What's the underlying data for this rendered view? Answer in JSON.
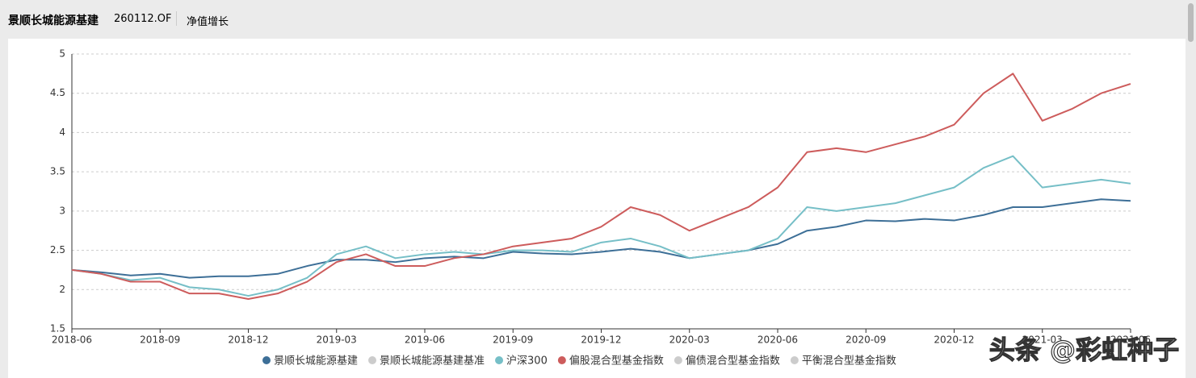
{
  "header": {
    "fund_name": "景顺长城能源基建",
    "fund_code": "260112.OF",
    "tab": "净值增长"
  },
  "watermark": "头条 @彩虹种子",
  "chart_data": {
    "type": "line",
    "categories": [
      "2018-06",
      null,
      null,
      "2018-09",
      null,
      null,
      "2018-12",
      null,
      null,
      "2019-03",
      null,
      null,
      "2019-06",
      null,
      null,
      "2019-09",
      null,
      null,
      "2019-12",
      null,
      null,
      "2020-03",
      null,
      null,
      "2020-06",
      null,
      null,
      "2020-09",
      null,
      null,
      "2020-12",
      null,
      null,
      "2021-03",
      null,
      null,
      "2021-06"
    ],
    "ylim": [
      1.5,
      5
    ],
    "yticks": [
      1.5,
      2,
      2.5,
      3,
      3.5,
      4,
      4.5,
      5
    ],
    "grid": true,
    "series": [
      {
        "name": "景顺长城能源基建",
        "color": "#3d6f97",
        "values": [
          2.25,
          2.22,
          2.18,
          2.2,
          2.15,
          2.17,
          2.17,
          2.2,
          2.3,
          2.38,
          2.38,
          2.35,
          2.4,
          2.42,
          2.4,
          2.48,
          2.46,
          2.45,
          2.48,
          2.52,
          2.48,
          2.4,
          2.45,
          2.5,
          2.58,
          2.75,
          2.8,
          2.88,
          2.87,
          2.9,
          2.88,
          2.95,
          3.05,
          3.05,
          3.1,
          3.15,
          3.13
        ]
      },
      {
        "name": "沪深300",
        "color": "#76bfc7",
        "values": [
          2.25,
          2.2,
          2.12,
          2.15,
          2.03,
          2.0,
          1.92,
          2.0,
          2.15,
          2.45,
          2.55,
          2.4,
          2.45,
          2.48,
          2.45,
          2.5,
          2.5,
          2.48,
          2.6,
          2.65,
          2.55,
          2.4,
          2.45,
          2.5,
          2.65,
          3.05,
          3.0,
          3.05,
          3.1,
          3.2,
          3.3,
          3.55,
          3.7,
          3.3,
          3.35,
          3.4,
          3.35
        ]
      },
      {
        "name": "偏股混合型基金指数",
        "color": "#cd5c5c",
        "values": [
          2.25,
          2.2,
          2.1,
          2.1,
          1.95,
          1.95,
          1.88,
          1.95,
          2.1,
          2.35,
          2.45,
          2.3,
          2.3,
          2.4,
          2.45,
          2.55,
          2.6,
          2.65,
          2.8,
          3.05,
          2.95,
          2.75,
          2.9,
          3.05,
          3.3,
          3.75,
          3.8,
          3.75,
          3.85,
          3.95,
          4.1,
          4.5,
          4.75,
          4.15,
          4.3,
          4.5,
          4.62
        ]
      }
    ],
    "legend": [
      {
        "name": "景顺长城能源基建",
        "color": "#3d6f97"
      },
      {
        "name": "景顺长城能源基建基准",
        "color": "#cccccc"
      },
      {
        "name": "沪深300",
        "color": "#76bfc7"
      },
      {
        "name": "偏股混合型基金指数",
        "color": "#cd5c5c"
      },
      {
        "name": "偏债混合型基金指数",
        "color": "#cccccc"
      },
      {
        "name": "平衡混合型基金指数",
        "color": "#cccccc"
      }
    ]
  }
}
